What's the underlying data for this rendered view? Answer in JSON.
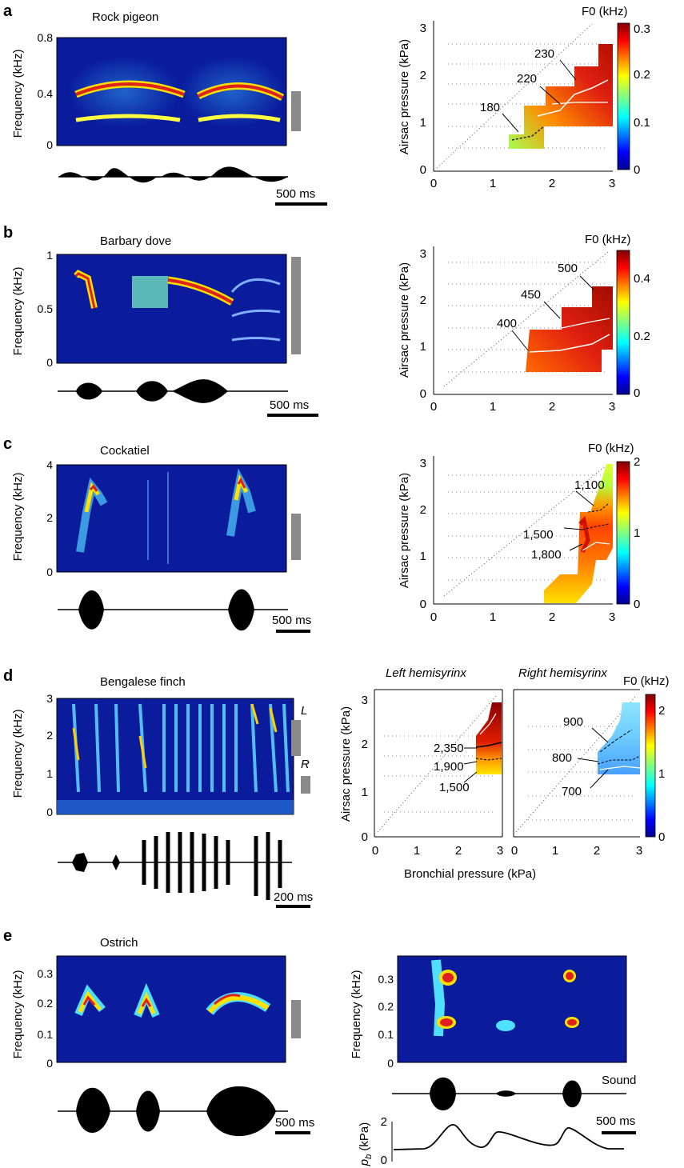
{
  "panels": {
    "a": {
      "label": "a",
      "species": "Rock pigeon",
      "spectrogram": {
        "ylabel": "Frequency (kHz)",
        "yticks": [
          "0.8",
          "0.4",
          "0"
        ],
        "scalebar": "500 ms"
      },
      "map": {
        "colorbar_title": "F0 (kHz)",
        "colorbar_ticks": [
          "0.3",
          "0.2",
          "0.1",
          "0"
        ],
        "ylabel": "Airsac pressure (kPa)",
        "yticks": [
          "3",
          "2",
          "1",
          "0"
        ],
        "xticks": [
          "0",
          "1",
          "2",
          "3"
        ],
        "contour_labels": [
          "230",
          "220",
          "180"
        ]
      }
    },
    "b": {
      "label": "b",
      "species": "Barbary dove",
      "spectrogram": {
        "ylabel": "Frequency (kHz)",
        "yticks": [
          "1",
          "0.5",
          "0"
        ],
        "scalebar": "500 ms"
      },
      "map": {
        "colorbar_title": "F0 (kHz)",
        "colorbar_ticks": [
          "0.4",
          "0.2",
          "0"
        ],
        "ylabel": "Airsac pressure (kPa)",
        "yticks": [
          "3",
          "2",
          "1",
          "0"
        ],
        "xticks": [
          "0",
          "1",
          "2",
          "3"
        ],
        "contour_labels": [
          "500",
          "450",
          "400"
        ]
      }
    },
    "c": {
      "label": "c",
      "species": "Cockatiel",
      "spectrogram": {
        "ylabel": "Frequency (kHz)",
        "yticks": [
          "4",
          "2",
          "0"
        ],
        "scalebar": "500 ms"
      },
      "map": {
        "colorbar_title": "F0 (kHz)",
        "colorbar_ticks": [
          "2",
          "1",
          "0"
        ],
        "ylabel": "Airsac pressure (kPa)",
        "yticks": [
          "3",
          "2",
          "1",
          "0"
        ],
        "xticks": [
          "0",
          "1",
          "2",
          "3"
        ],
        "contour_labels": [
          "1,100",
          "1,500",
          "1,800"
        ]
      }
    },
    "d": {
      "label": "d",
      "species": "Bengalese finch",
      "spectrogram": {
        "ylabel": "Frequency (kHz)",
        "yticks": [
          "3",
          "2",
          "1",
          "0"
        ],
        "scalebar": "200 ms",
        "side_labels": [
          "L",
          "R"
        ]
      },
      "map_left": {
        "title": "Left hemisyrinx",
        "ylabel": "Airsac pressure (kPa)",
        "yticks": [
          "3",
          "2",
          "1",
          "0"
        ],
        "xticks": [
          "0",
          "1",
          "2",
          "3"
        ],
        "contour_labels": [
          "2,350",
          "1,900",
          "1,500"
        ]
      },
      "map_right": {
        "title": "Right hemisyrinx",
        "yticks": [
          "3",
          "2",
          "1",
          "0"
        ],
        "xticks": [
          "0",
          "1",
          "2",
          "3"
        ],
        "contour_labels": [
          "900",
          "800",
          "700"
        ],
        "colorbar_title": "F0 (kHz)",
        "colorbar_ticks": [
          "2",
          "1",
          "0"
        ]
      },
      "xlabel": "Bronchial pressure (kPa)"
    },
    "e": {
      "label": "e",
      "species": "Ostrich",
      "spectrogram": {
        "ylabel": "Frequency (kHz)",
        "yticks": [
          "0.3",
          "0.2",
          "0.1",
          "0"
        ],
        "scalebar": "500 ms"
      },
      "right_spectrogram": {
        "ylabel": "Frequency (kHz)",
        "yticks": [
          "0.3",
          "0.2",
          "0.1",
          "0"
        ]
      },
      "sound_label": "Sound",
      "pressure": {
        "ylabel": "p",
        "ylabel_sub": "b",
        "ylabel_unit": " (kPa)",
        "yticks": [
          "2",
          "0"
        ],
        "scalebar": "500 ms"
      }
    }
  },
  "colors": {
    "spectrogram_bg": "#0a1c9c",
    "ridge": "#e0201c",
    "jet_low": "#00008f",
    "jet_high": "#800000",
    "scale_bar_gray": "#8a8a8a"
  }
}
